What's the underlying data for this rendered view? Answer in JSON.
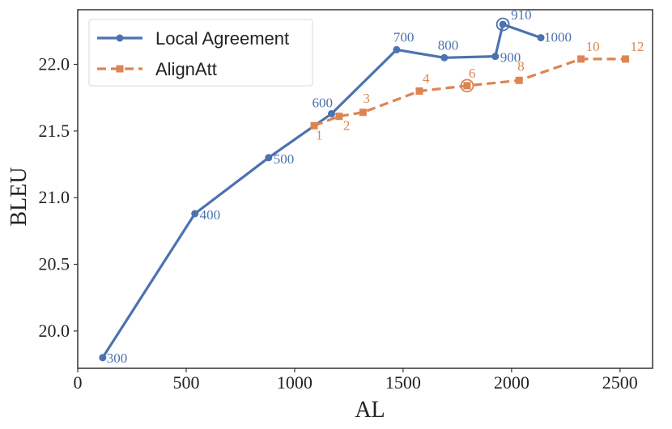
{
  "chart_data": {
    "type": "line",
    "title": "",
    "xlabel": "AL",
    "ylabel": "BLEU",
    "xlim": [
      0,
      2650
    ],
    "ylim": [
      19.72,
      22.41
    ],
    "xticks": [
      0,
      500,
      1000,
      1500,
      2000,
      2500
    ],
    "yticks": [
      20.0,
      20.5,
      21.0,
      21.5,
      22.0
    ],
    "xtick_labels": [
      "0",
      "500",
      "1000",
      "1500",
      "2000",
      "2500"
    ],
    "ytick_labels": [
      "20.0",
      "20.5",
      "21.0",
      "21.5",
      "22.0"
    ],
    "grid": false,
    "legend_position": "top-left",
    "series": [
      {
        "name": "Local Agreement",
        "color": "#4c72b0",
        "marker": "circle",
        "linestyle": "solid",
        "points": [
          {
            "x": 115,
            "y": 19.8,
            "label": "300"
          },
          {
            "x": 540,
            "y": 20.88,
            "label": "400"
          },
          {
            "x": 880,
            "y": 21.3,
            "label": "500"
          },
          {
            "x": 1170,
            "y": 21.63,
            "label": "600"
          },
          {
            "x": 1470,
            "y": 22.11,
            "label": "700"
          },
          {
            "x": 1690,
            "y": 22.05,
            "label": "800"
          },
          {
            "x": 1925,
            "y": 22.06,
            "label": "900"
          },
          {
            "x": 1960,
            "y": 22.3,
            "label": "910",
            "highlight": true
          },
          {
            "x": 2135,
            "y": 22.2,
            "label": "1000"
          }
        ]
      },
      {
        "name": "AlignAtt",
        "color": "#dd8452",
        "marker": "square",
        "linestyle": "dashed",
        "points": [
          {
            "x": 1090,
            "y": 21.54,
            "label": "1"
          },
          {
            "x": 1205,
            "y": 21.61,
            "label": "2"
          },
          {
            "x": 1315,
            "y": 21.64,
            "label": "3"
          },
          {
            "x": 1575,
            "y": 21.8,
            "label": "4"
          },
          {
            "x": 1795,
            "y": 21.84,
            "label": "6",
            "highlight": true
          },
          {
            "x": 2035,
            "y": 21.88,
            "label": "8"
          },
          {
            "x": 2320,
            "y": 22.04,
            "label": "10"
          },
          {
            "x": 2525,
            "y": 22.04,
            "label": "12"
          }
        ]
      }
    ]
  }
}
